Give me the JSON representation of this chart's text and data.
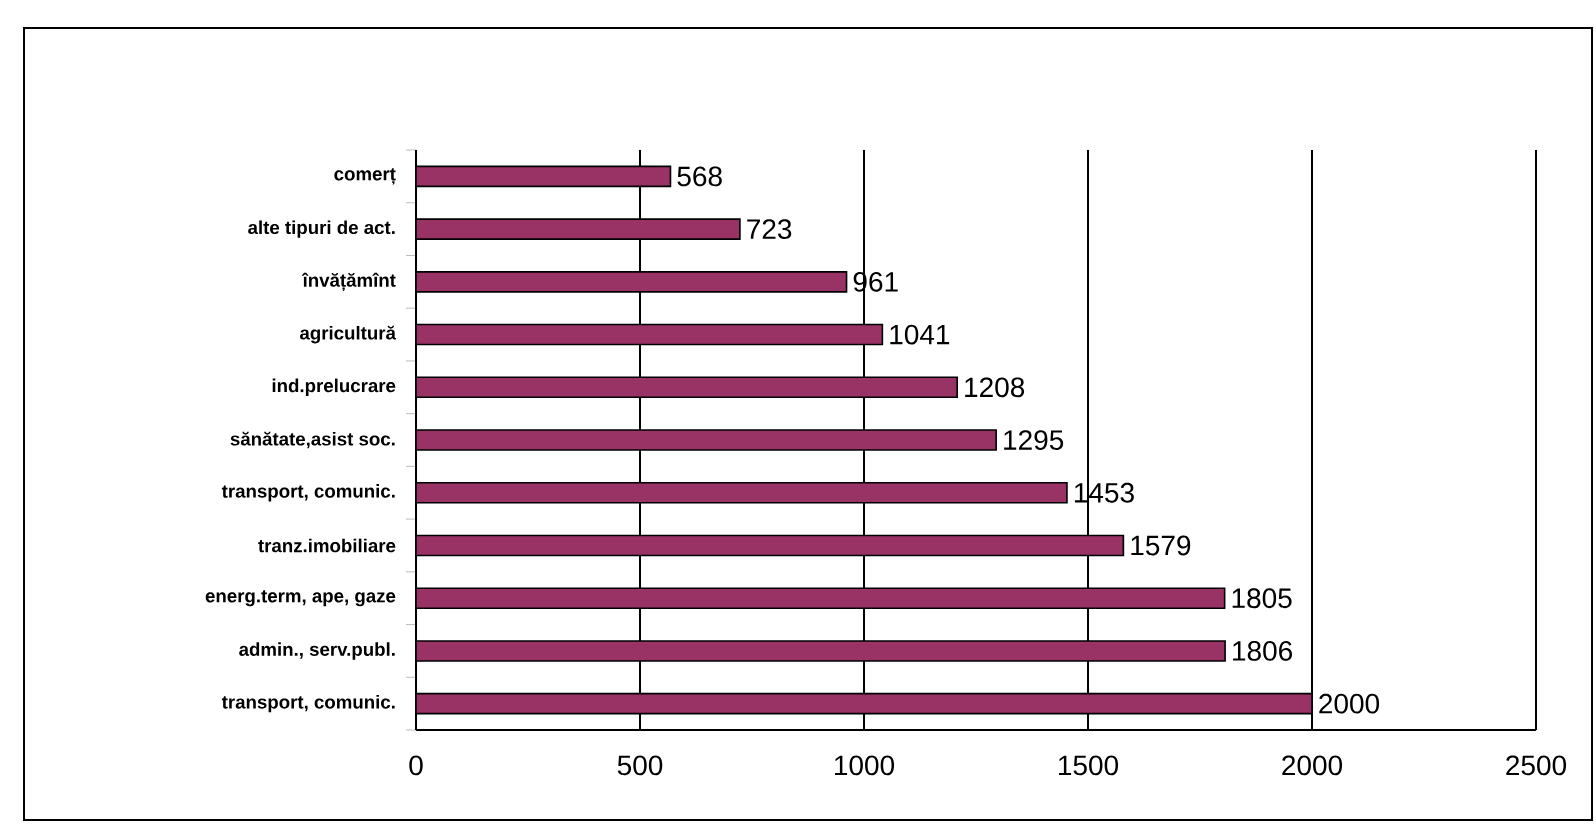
{
  "chart_data": {
    "type": "bar",
    "orientation": "horizontal",
    "categories": [
      "comerț",
      "alte tipuri de act.",
      "învățămînt",
      "agricultură",
      "ind.prelucrare",
      "sănătate,asist soc.",
      "transport, comunic.",
      "tranz.imobiliare",
      "energ.term, ape, gaze",
      "admin., serv.publ.",
      "transport, comunic."
    ],
    "values": [
      568,
      723,
      961,
      1041,
      1208,
      1295,
      1453,
      1579,
      1805,
      1806,
      2000
    ],
    "color": "#993366",
    "xlim": [
      0,
      2500
    ],
    "xticks": [
      0,
      500,
      1000,
      1500,
      2000,
      2500
    ],
    "grid": "x",
    "data_labels": true
  }
}
